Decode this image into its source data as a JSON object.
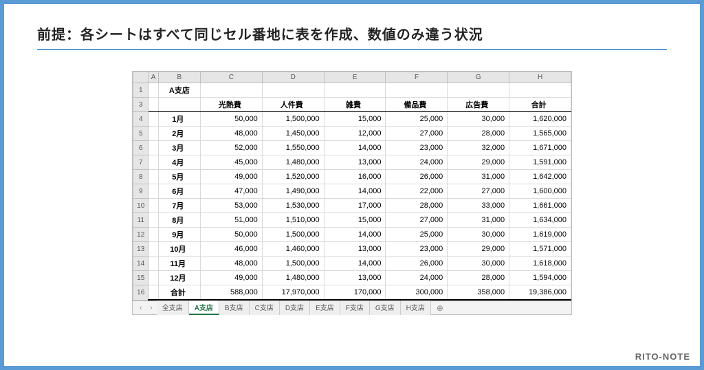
{
  "title": "前提：各シートはすべて同じセル番地に表を作成、数値のみ違う状況",
  "branding": "RITO-NOTE",
  "branch_label": "A支店",
  "colors": {
    "frame_border": "#5a9bd5",
    "title_underline": "#5a9bd5",
    "branch_bg": "#4f81bd",
    "branch_fg": "#ffffff",
    "header_bg": "#e6e6e6",
    "grid_line": "#d9d9d9",
    "active_tab": "#217346"
  },
  "columns": [
    "A",
    "B",
    "C",
    "D",
    "E",
    "F",
    "G",
    "H"
  ],
  "row_numbers": [
    1,
    3,
    4,
    5,
    6,
    7,
    8,
    9,
    10,
    11,
    12,
    13,
    14,
    15,
    16
  ],
  "headers": [
    "",
    "光熱費",
    "人件費",
    "雑費",
    "備品費",
    "広告費",
    "合計"
  ],
  "rows": [
    {
      "label": "1月",
      "v": [
        "50,000",
        "1,500,000",
        "15,000",
        "25,000",
        "30,000",
        "1,620,000"
      ]
    },
    {
      "label": "2月",
      "v": [
        "48,000",
        "1,450,000",
        "12,000",
        "27,000",
        "28,000",
        "1,565,000"
      ]
    },
    {
      "label": "3月",
      "v": [
        "52,000",
        "1,550,000",
        "14,000",
        "23,000",
        "32,000",
        "1,671,000"
      ]
    },
    {
      "label": "4月",
      "v": [
        "45,000",
        "1,480,000",
        "13,000",
        "24,000",
        "29,000",
        "1,591,000"
      ]
    },
    {
      "label": "5月",
      "v": [
        "49,000",
        "1,520,000",
        "16,000",
        "26,000",
        "31,000",
        "1,642,000"
      ]
    },
    {
      "label": "6月",
      "v": [
        "47,000",
        "1,490,000",
        "14,000",
        "22,000",
        "27,000",
        "1,600,000"
      ]
    },
    {
      "label": "7月",
      "v": [
        "53,000",
        "1,530,000",
        "17,000",
        "28,000",
        "33,000",
        "1,661,000"
      ]
    },
    {
      "label": "8月",
      "v": [
        "51,000",
        "1,510,000",
        "15,000",
        "27,000",
        "31,000",
        "1,634,000"
      ]
    },
    {
      "label": "9月",
      "v": [
        "50,000",
        "1,500,000",
        "14,000",
        "25,000",
        "30,000",
        "1,619,000"
      ]
    },
    {
      "label": "10月",
      "v": [
        "46,000",
        "1,460,000",
        "13,000",
        "23,000",
        "29,000",
        "1,571,000"
      ]
    },
    {
      "label": "11月",
      "v": [
        "48,000",
        "1,500,000",
        "14,000",
        "26,000",
        "30,000",
        "1,618,000"
      ]
    },
    {
      "label": "12月",
      "v": [
        "49,000",
        "1,480,000",
        "13,000",
        "24,000",
        "28,000",
        "1,594,000"
      ]
    }
  ],
  "totals": {
    "label": "合計",
    "v": [
      "588,000",
      "17,970,000",
      "170,000",
      "300,000",
      "358,000",
      "19,386,000"
    ]
  },
  "tabs": [
    "全支店",
    "A支店",
    "B支店",
    "C支店",
    "D支店",
    "E支店",
    "F支店",
    "G支店",
    "H支店"
  ],
  "active_tab_index": 1,
  "nav_prev": "‹",
  "nav_next": "›",
  "add_sheet": "⊕"
}
